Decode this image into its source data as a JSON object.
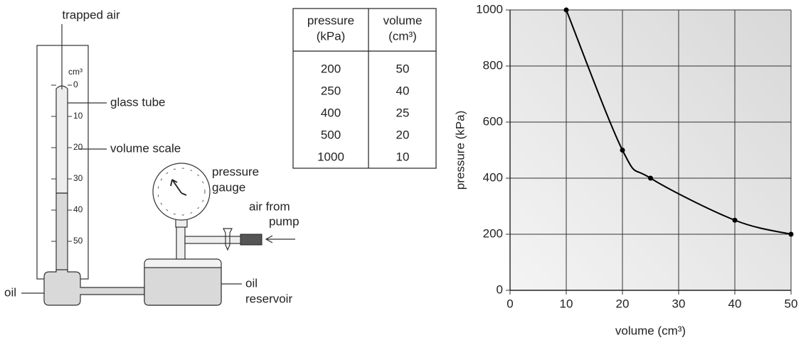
{
  "diagram": {
    "trapped_air": "trapped air",
    "scale_unit": "cm³",
    "scale_ticks": [
      "0",
      "10",
      "20",
      "30",
      "40",
      "50"
    ],
    "glass_tube": "glass tube",
    "volume_scale": "volume scale",
    "pressure_gauge": [
      "pressure",
      "gauge"
    ],
    "air_from_pump": [
      "air from",
      "pump"
    ],
    "oil": "oil",
    "oil_reservoir": [
      "oil",
      "reservoir"
    ]
  },
  "table": {
    "headers": [
      [
        "pressure",
        "(kPa)"
      ],
      [
        "volume",
        "(cm³)"
      ]
    ],
    "rows": [
      [
        200,
        50
      ],
      [
        250,
        40
      ],
      [
        400,
        25
      ],
      [
        500,
        20
      ],
      [
        1000,
        10
      ]
    ]
  },
  "chart_data": {
    "type": "line",
    "x": [
      10,
      20,
      25,
      40,
      50
    ],
    "series": [
      {
        "color": "#000000",
        "values": [
          1000,
          500,
          400,
          250,
          200
        ]
      }
    ],
    "xlim": [
      0,
      50
    ],
    "ylim": [
      0,
      1000
    ],
    "xticks": [
      0,
      10,
      20,
      30,
      40,
      50
    ],
    "yticks": [
      0,
      200,
      400,
      600,
      800,
      1000
    ],
    "xlabel": "volume (cm³)",
    "ylabel": "pressure (kPa)",
    "grid": true
  }
}
